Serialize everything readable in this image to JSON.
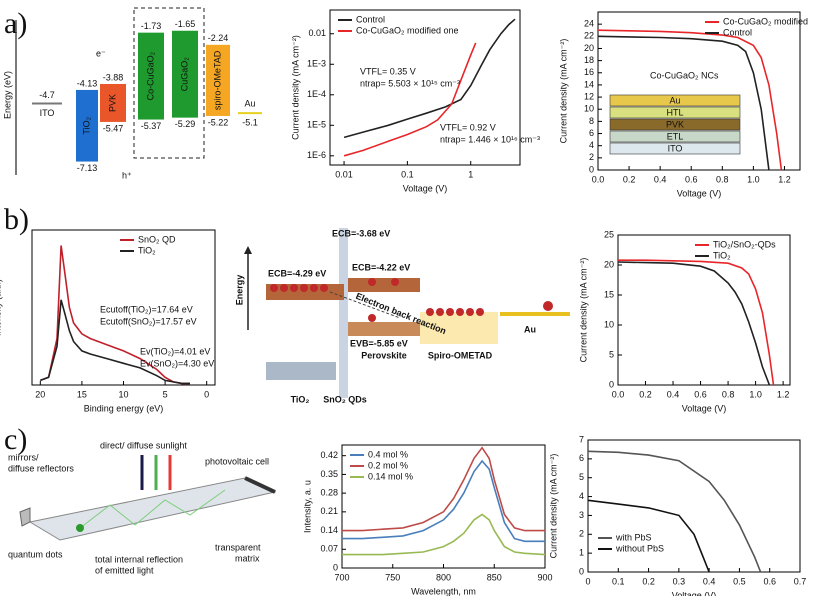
{
  "panel_labels": [
    "a)",
    "b)",
    "c)"
  ],
  "chart_data": [
    {
      "type": "line",
      "xlabel": "Voltage (V)",
      "ylabel": "Current density (mA cm⁻²)",
      "xscale": "log",
      "yscale": "log",
      "xlim": [
        0.006,
        6
      ],
      "ylim": [
        5e-07,
        0.06
      ],
      "xticks": [
        0.01,
        0.1,
        1
      ],
      "yticks": [
        {
          "value": 1e-06,
          "label": "1E-6"
        },
        {
          "value": 1e-05,
          "label": "1E-5"
        },
        {
          "value": 0.0001,
          "label": "1E-4"
        },
        {
          "value": 0.001,
          "label": "1E-3"
        },
        0.01
      ],
      "legend": "upper left",
      "series": [
        {
          "name": "Control",
          "color": "#222222",
          "x": [
            0.01,
            0.02,
            0.05,
            0.1,
            0.2,
            0.4,
            0.7,
            1,
            1.5,
            2,
            3,
            4,
            5
          ],
          "values": [
            4e-06,
            6e-06,
            1e-05,
            1.6e-05,
            2.5e-05,
            4e-05,
            7e-05,
            0.0002,
            0.001,
            0.003,
            0.01,
            0.02,
            0.03
          ]
        },
        {
          "name": "Co-CuGaO₂ modified one",
          "color": "#e8262a",
          "x": [
            0.01,
            0.02,
            0.05,
            0.1,
            0.2,
            0.3,
            0.5,
            0.7,
            1,
            1.2
          ],
          "values": [
            1e-06,
            1.5e-06,
            3e-06,
            5e-06,
            9e-06,
            1.5e-05,
            5e-05,
            0.0003,
            0.002,
            0.005
          ]
        }
      ],
      "annotations": [
        "VTFL= 0.35 V",
        "ntrap= 5.503 × 10¹⁵ cm⁻³",
        "VTFL= 0.92 V",
        "ntrap= 1.446 × 10¹⁶ cm⁻³"
      ]
    },
    {
      "type": "line",
      "xlabel": "Voltage (V)",
      "ylabel": "Current density (mA cm⁻²)",
      "xlim": [
        0,
        1.3
      ],
      "ylim": [
        0,
        26
      ],
      "xticks": [
        {
          "value": 0,
          "label": "0.0"
        },
        0.2,
        0.4,
        0.6,
        0.8,
        {
          "value": 1,
          "label": "1.0"
        },
        1.2
      ],
      "yticks": [
        0,
        2,
        4,
        6,
        8,
        10,
        12,
        14,
        16,
        18,
        20,
        22,
        24
      ],
      "legend": "upper right",
      "series": [
        {
          "name": "Co-CuGaO₂ modified",
          "color": "#e8262a",
          "x": [
            0,
            0.2,
            0.4,
            0.6,
            0.8,
            0.9,
            1.0,
            1.05,
            1.1,
            1.15,
            1.18
          ],
          "values": [
            23,
            22.9,
            22.8,
            22.6,
            22.2,
            21.8,
            20.5,
            18.5,
            14,
            6,
            0
          ]
        },
        {
          "name": "Control",
          "color": "#222222",
          "x": [
            0,
            0.2,
            0.4,
            0.6,
            0.8,
            0.9,
            0.95,
            1.0,
            1.05,
            1.1
          ],
          "values": [
            22,
            21.9,
            21.8,
            21.6,
            21.2,
            20.5,
            19.5,
            16,
            10,
            0
          ]
        }
      ],
      "annotations": [
        "Co-CuGaO₂ NCs"
      ],
      "inset_layers": [
        "Au",
        "HTL",
        "PVK",
        "ETL",
        "ITO"
      ]
    },
    {
      "type": "line",
      "xlabel": "Binding energy (eV)",
      "ylabel": "Intensity (a.u.)",
      "xlim": [
        21,
        -1
      ],
      "ylim": [
        0,
        1
      ],
      "xticks": [
        20,
        15,
        10,
        5,
        0
      ],
      "legend": "upper right",
      "x": [
        20,
        19,
        18,
        17.5,
        17,
        16.5,
        16,
        15,
        14,
        12,
        10,
        8,
        6,
        5,
        4,
        3,
        2
      ],
      "series": [
        {
          "name": "SnO₂ QD",
          "color": "#c0202a",
          "values": [
            0.03,
            0.05,
            0.3,
            0.9,
            0.7,
            0.5,
            0.4,
            0.33,
            0.3,
            0.26,
            0.22,
            0.17,
            0.1,
            0.05,
            0.02,
            0.01,
            0.01
          ]
        },
        {
          "name": "TiO₂",
          "color": "#222222",
          "values": [
            0.03,
            0.05,
            0.25,
            0.55,
            0.45,
            0.35,
            0.28,
            0.22,
            0.2,
            0.17,
            0.14,
            0.11,
            0.06,
            0.03,
            0.02,
            0.01,
            0.01
          ]
        }
      ],
      "annotations": [
        "Ecutoff(TiO₂)=17.64 eV",
        "Ecutoff(SnO₂)=17.57 eV",
        "Ev(TiO₂)=4.01 eV",
        "Ev(SnO₂)=4.30 eV"
      ]
    },
    {
      "type": "line",
      "xlabel": "Voltage (V)",
      "ylabel": "Current density (mA cm⁻²)",
      "xlim": [
        0,
        1.25
      ],
      "ylim": [
        0,
        25
      ],
      "xticks": [
        {
          "value": 0,
          "label": "0.0"
        },
        0.2,
        0.4,
        0.6,
        0.8,
        {
          "value": 1,
          "label": "1.0"
        },
        1.2
      ],
      "yticks": [
        0,
        5,
        10,
        15,
        20,
        25
      ],
      "legend": "upper right",
      "series": [
        {
          "name": "TiO₂/SnO₂-QDs",
          "color": "#e8262a",
          "x": [
            0,
            0.2,
            0.4,
            0.6,
            0.8,
            0.9,
            0.95,
            1.0,
            1.05,
            1.1,
            1.13
          ],
          "values": [
            20.8,
            20.8,
            20.7,
            20.6,
            20.3,
            19.5,
            18.5,
            16,
            12,
            5,
            0
          ]
        },
        {
          "name": "TiO₂",
          "color": "#222222",
          "x": [
            0,
            0.2,
            0.4,
            0.6,
            0.7,
            0.8,
            0.85,
            0.9,
            0.95,
            1.0,
            1.05,
            1.1
          ],
          "values": [
            20.5,
            20.4,
            20.3,
            19.8,
            19,
            17,
            15.5,
            13.5,
            10.5,
            7,
            3,
            0
          ]
        }
      ]
    },
    {
      "type": "line",
      "xlabel": "Wavelength, nm",
      "ylabel": "Intensity, a. u",
      "xlim": [
        700,
        900
      ],
      "ylim": [
        0,
        0.46
      ],
      "xticks": [
        700,
        750,
        800,
        850,
        900
      ],
      "yticks": [
        0,
        0.07,
        0.14,
        0.21,
        0.28,
        0.35,
        0.42
      ],
      "legend": "upper left",
      "x": [
        700,
        720,
        740,
        760,
        780,
        800,
        810,
        820,
        830,
        838,
        845,
        850,
        860,
        870,
        880,
        900
      ],
      "series": [
        {
          "name": "0.4 mol %",
          "color": "#4a7ebb",
          "values": [
            0.11,
            0.11,
            0.115,
            0.12,
            0.14,
            0.18,
            0.22,
            0.28,
            0.36,
            0.4,
            0.37,
            0.3,
            0.17,
            0.11,
            0.1,
            0.1
          ]
        },
        {
          "name": "0.2 mol %",
          "color": "#be4b48",
          "values": [
            0.14,
            0.14,
            0.145,
            0.15,
            0.17,
            0.21,
            0.26,
            0.33,
            0.41,
            0.45,
            0.41,
            0.33,
            0.2,
            0.15,
            0.14,
            0.14
          ]
        },
        {
          "name": "0.14 mol %",
          "color": "#98b954",
          "values": [
            0.05,
            0.05,
            0.05,
            0.055,
            0.06,
            0.08,
            0.1,
            0.13,
            0.18,
            0.2,
            0.18,
            0.14,
            0.08,
            0.06,
            0.055,
            0.05
          ]
        }
      ]
    },
    {
      "type": "line",
      "xlabel": "Voltage (V)",
      "ylabel": "Current density (mA cm⁻²)",
      "xlim": [
        0,
        0.7
      ],
      "ylim": [
        0,
        7
      ],
      "xticks": [
        0,
        0.1,
        0.2,
        0.3,
        0.4,
        0.5,
        0.6,
        0.7
      ],
      "yticks": [
        0,
        1,
        2,
        3,
        4,
        5,
        6,
        7
      ],
      "legend": "lower left",
      "series": [
        {
          "name": "with PbS",
          "color": "#555555",
          "x": [
            0,
            0.1,
            0.2,
            0.3,
            0.4,
            0.45,
            0.5,
            0.55,
            0.57
          ],
          "values": [
            6.4,
            6.35,
            6.2,
            5.9,
            4.8,
            3.8,
            2.5,
            0.8,
            0
          ]
        },
        {
          "name": "without PbS",
          "color": "#111111",
          "x": [
            0,
            0.1,
            0.2,
            0.3,
            0.35,
            0.38,
            0.4
          ],
          "values": [
            3.8,
            3.6,
            3.4,
            3.0,
            2.0,
            0.8,
            0
          ]
        }
      ]
    }
  ],
  "diagrams": {
    "a": {
      "axis_label": "Energy (eV)",
      "levels": [
        {
          "label": "ITO",
          "value": -4.7
        },
        {
          "label": "Au",
          "value": -5.1
        }
      ],
      "boxes": [
        {
          "label": "TiO₂",
          "top": -4.13,
          "bottom": -7.13,
          "color": "#1f6fd1"
        },
        {
          "label": "PVK",
          "top": -3.88,
          "bottom": -5.47,
          "color": "#e8562a"
        },
        {
          "label": "Co-CuGaO₂",
          "top": -1.73,
          "bottom": -5.37,
          "color": "#1e9a2e"
        },
        {
          "label": "CuGaO₂",
          "top": -1.65,
          "bottom": -5.29,
          "color": "#1e9a2e"
        },
        {
          "label": "spiro-OMeTAD",
          "top": -2.24,
          "bottom": -5.22,
          "color": "#f5a623"
        }
      ],
      "carriers": [
        "e⁻",
        "h⁺"
      ]
    },
    "b": {
      "energy": "Energy",
      "ecb_sno2": "ECB=-3.68 eV",
      "ecb_tio2": "ECB=-4.29 eV",
      "ecb_pvk": "ECB=-4.22 eV",
      "evb_pvk": "EVB=-5.85 eV",
      "back_reaction": "Electron back reaction",
      "perovskite": "Perovskite",
      "spiro": "Spiro-OMETAD",
      "au": "Au",
      "tio2": "TiO₂",
      "sno2": "SnO₂ QDs"
    },
    "c": {
      "mirrors": [
        "mirrors/",
        "diffuse reflectors"
      ],
      "sunlight": "direct/ diffuse sunlight",
      "pv_cell": "photovoltaic cell",
      "quantum_dots": "quantum dots",
      "tir": [
        "total internal reflection",
        "of emitted light"
      ],
      "matrix": [
        "transparent",
        "matrix"
      ]
    }
  }
}
